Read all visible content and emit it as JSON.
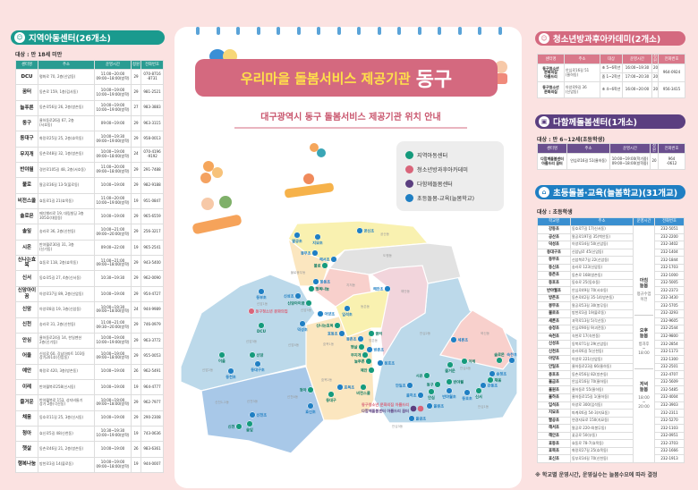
{
  "colors": {
    "teal": "#1a9a8e",
    "pink": "#d4697f",
    "purple": "#5b3f80",
    "blue": "#1f7fc3",
    "bg": "#fbe2e1"
  },
  "left": {
    "title": "지역아동센터(26개소)",
    "icon": "child-care-icon",
    "target": "대상 : 만 18세 미만",
    "headers": [
      "센터명",
      "주소",
      "운영시간",
      "정원",
      "전화번호"
    ],
    "rows": [
      [
        "DCU",
        "평화로 70, 2층(신암동)",
        "11:00~20:00\n09:00~18:00(방학)",
        "29",
        "070-8716\n-8731"
      ],
      [
        "꿈터",
        "동촌로 159, 1층(검사동)",
        "10:00~19:00\n10:00~19:00(방학)",
        "29",
        "981-2521"
      ],
      [
        "늘푸른",
        "동촌로56길 26, 2층(방촌동)",
        "10:00~19:00\n10:00~19:00(방학)",
        "27",
        "983-3883"
      ],
      [
        "동구",
        "율하동로26길 67, 2층\n(서호동)",
        "09:00~19:00",
        "29",
        "963-3115"
      ],
      [
        "동대구",
        "화랑로25길 25, 2층(효목동)",
        "10:00~19:30\n09:00~19:00(방학)",
        "29",
        "958-0013"
      ],
      [
        "무지개",
        "동촌로48길 32, 1층(방촌동)",
        "10:00~19:00\n09:00~18:00(방학)",
        "24",
        "070-4196\n-9192"
      ],
      [
        "반야월",
        "경안로105길 48, 2층(서호동)",
        "11:00~20:00\n09:00~18:00(방학)",
        "29",
        "291-7488"
      ],
      [
        "불로",
        "팔공로36길 13-5(불로동)",
        "10:00~19:00",
        "29",
        "982-9188"
      ],
      [
        "비전스쿨",
        "효동로1길 21(효목동)",
        "11:00~20:00\n10:00~19:00(방학)",
        "19",
        "951-0847"
      ],
      [
        "솔로몬",
        "메디밸리로 19, 대림빌딩 3층\n305호(대림동)",
        "10:00~19:00",
        "29",
        "965-6559"
      ],
      [
        "솔잎",
        "송라로 36, 2층(신천동)",
        "10:00~21:00\n09:00~20:00(방학)",
        "29",
        "256-3217"
      ],
      [
        "시온",
        "반야월로30길 31, 3층\n(신기동)",
        "09:00~22:00",
        "19",
        "965-2541"
      ],
      [
        "신나는효목",
        "효동로 118, 2층(효목동)",
        "11:00~21:00\n09:00~18:00(방학)",
        "29",
        "943-5400"
      ],
      [
        "신서",
        "동호로5길 27, 4층(신서동)",
        "10:30~19:30",
        "29",
        "962-0090"
      ],
      [
        "신암아이꿈",
        "아양로37길 89, 2층(신암동)",
        "10:00~19:00",
        "29",
        "954-4727"
      ],
      [
        "신암",
        "아양로8길 19, 3층(신암동)",
        "10:00~19:30\n09:00~18:00(방학)",
        "24",
        "944-9989"
      ],
      [
        "신천",
        "송라로 31, 2층(신천동)",
        "11:00~21:00\n09:30~20:00(방학)",
        "29",
        "746-0979"
      ],
      [
        "안심",
        "율하동로24길 14, 한일맨션\n2층(신기동)",
        "10:00~19:00\n10:00~19:00(방학)",
        "29",
        "963-3772"
      ],
      [
        "어울",
        "신성로 60, 강남아파트 103동\n상가201호(신암동)",
        "10:00~19:00\n09:00~18:00(방학)",
        "29",
        "955-0053"
      ],
      [
        "예안",
        "화랑로 420, 3층(방촌동)",
        "10:00~19:00",
        "26",
        "962-5491"
      ],
      [
        "이레",
        "반야월북로258(신서동)",
        "10:00~19:00",
        "19",
        "964-4777"
      ],
      [
        "즐거운",
        "반야월북로 153, 성지비둘기\n상가 2층(각산동)",
        "10:00~19:00\n09:00~18:00(방학)",
        "29",
        "962-7977"
      ],
      [
        "채움",
        "동호로11길 25, 3층(신서동)",
        "10:00~19:00",
        "29",
        "290-2308"
      ],
      [
        "청아",
        "효신로5길 48(신천동)",
        "10:30~19:30\n10:00~19:00(방학)",
        "19",
        "743-0636"
      ],
      [
        "햇살",
        "동촌로46길 21, 2층(방촌동)",
        "10:00~19:00",
        "26",
        "983-6361"
      ],
      [
        "행복나눔",
        "방천로3길 14(불로동)",
        "10:00~19:00\n09:00~18:00(방학)",
        "19",
        "944-0007"
      ]
    ]
  },
  "youth": {
    "title": "청소년방과후아카데미(2개소)",
    "icon": "youth-academy-icon",
    "headers": [
      "센터명",
      "주소",
      "대상",
      "운영시간",
      "정원",
      "전화번호"
    ],
    "rows": [
      {
        "name": "동구청소년\n문화의집\n아름드리",
        "addr": "안심로16길 51\n(율하동)",
        "sub": [
          [
            "초 5~6학년",
            "16:00~19:30",
            "20"
          ],
          [
            "중 1~2학년",
            "17:00~20:30",
            "20"
          ]
        ],
        "phone": "964-0924"
      },
      {
        "name": "동구청소년\n문화의집",
        "addr": "아양로9길 36\n(신암동)",
        "sub": [
          [
            "초 4~6학년",
            "16:00~20:00",
            "20"
          ]
        ],
        "phone": "956-3415"
      }
    ]
  },
  "daham": {
    "title": "다함께돌봄센터(1개소)",
    "icon": "community-care-icon",
    "target": "대상 : 만 6~12세(초등학생)",
    "headers": [
      "센터명",
      "주소",
      "운영시간",
      "정원",
      "전화번호"
    ],
    "row": [
      "다함께돌봄센터\n아름드리 꿈터",
      "안심로16길 51(율하동)",
      "10:00~19:00(학기중)\n09:00~18:00(방학중)",
      "20",
      "964\n-0612"
    ]
  },
  "school": {
    "title": "초등돌봄·교육(늘봄학교)(31개교)",
    "icon": "school-icon",
    "target": "대상 : 초등학생",
    "headers": [
      "학교명",
      "주소",
      "운영시간",
      "전화번호"
    ],
    "hours": [
      {
        "label": "아침\n늘봄",
        "time": "정규수업\n이전"
      },
      {
        "label": "오후\n늘봄",
        "time": "방과후\n~\n18:00"
      },
      {
        "label": "저녁\n늘봄",
        "time": "18:00\n~\n20:00"
      }
    ],
    "rows": [
      [
        "강동초",
        "동호로7길 17(신서동)",
        "232-5051"
      ],
      [
        "공산초",
        "팔공로197길 35(백안동)",
        "232-2200"
      ],
      [
        "덕성초",
        "아양로34길 50(신암동)",
        "232-3402"
      ],
      [
        "동대구초",
        "신암남로 45(신암동)",
        "232-1404"
      ],
      [
        "동부초",
        "신암북로7길 22(신암동)",
        "232-1844"
      ],
      [
        "동신초",
        "송라로 123(신암동)",
        "232-1703"
      ],
      [
        "동촌초",
        "동촌로 168(방촌동)",
        "232-1000"
      ],
      [
        "동호초",
        "동호로 25(동호동)",
        "232-5005"
      ],
      [
        "반야월초",
        "안심로49길 70(서호동)",
        "232-2373"
      ],
      [
        "방촌초",
        "동촌로42길 35-14(방촌동)",
        "232-3430"
      ],
      [
        "봉무초",
        "팔공로53길 30(봉무동)",
        "232-5705"
      ],
      [
        "불로초",
        "방천로3길 19(불로동)",
        "232-3293"
      ],
      [
        "새론초",
        "과학로13길 5(각산동)",
        "232-9605"
      ],
      [
        "송정초",
        "안심로90길 9(괴전동)",
        "232-2544"
      ],
      [
        "숙천초",
        "숙천로 17(숙천동)",
        "232-9800"
      ],
      [
        "신성초",
        "동북로71길 29(신암동)",
        "232-2854"
      ],
      [
        "신천초",
        "송라로6길 5(신천동)",
        "232-1173"
      ],
      [
        "아양초",
        "아양로 221(신암동)",
        "232-1300"
      ],
      [
        "안일초",
        "율하동로23길 66(율하동)",
        "232-2501"
      ],
      [
        "용호초",
        "동촌로56길 82(방촌동)",
        "232-4707"
      ],
      [
        "율금초",
        "안심로16길 70(율하동)",
        "232-5609"
      ],
      [
        "율원초",
        "율하동로 55(율하동)",
        "232-5485"
      ],
      [
        "율하초",
        "율하동로15길 1(율하동)",
        "232-4004"
      ],
      [
        "입석초",
        "아양로 300(입석동)",
        "232-3903"
      ],
      [
        "지묘초",
        "파계로6길 54-3(지묘동)",
        "232-2311"
      ],
      [
        "팔공초",
        "연경지묘로 150(지묘동)",
        "232-5270"
      ],
      [
        "해서초",
        "팔공로 220-4(봉무동)",
        "232-1103"
      ],
      [
        "해안초",
        "꽃공로 50(부동)",
        "232-0951"
      ],
      [
        "효동초",
        "효동로 78-7(효목동)",
        "232-3703"
      ],
      [
        "효목초",
        "화랑로27길 25(효목동)",
        "232-1666"
      ],
      [
        "효신초",
        "동부로34길 70(신천동)",
        "232-1913"
      ]
    ],
    "note": "※ 학교별 운영시간, 운영실수는 늘봄수요에 따라 결정"
  },
  "center": {
    "title_main": "우리마을 돌봄서비스 제공기관",
    "title_district": "동구",
    "subtitle": "대구광역시 동구 돌봄서비스 제공기관 위치 안내",
    "legend": [
      {
        "label": "지역아동센터",
        "color": "#159a7c",
        "icon": "child-care-icon"
      },
      {
        "label": "청소년방과후아카데미",
        "color": "#d9657a",
        "icon": "youth-academy-icon"
      },
      {
        "label": "다함께돌봄센터",
        "color": "#5b3f80",
        "icon": "community-care-icon"
      },
      {
        "label": "초등돌봄-교육(늘봄학교)",
        "color": "#1f7fc3",
        "icon": "school-icon"
      }
    ]
  },
  "map": {
    "dongs": [
      "공산동",
      "도평동",
      "불로봉무동",
      "지저동",
      "해안동",
      "동촌동",
      "신암1동",
      "신암5동",
      "신암3동",
      "신암4동",
      "신암2동",
      "효목1동",
      "방촌동",
      "안심2동",
      "혁신동",
      "안심4동",
      "효목2동",
      "신천4동",
      "신천3동",
      "신천1.2동",
      "안심3동",
      "안심1동"
    ],
    "schools": [
      "공신초",
      "팔공초",
      "지묘초",
      "봉무초",
      "해서초",
      "봉동초",
      "동부초",
      "신성초",
      "아양초",
      "입석초",
      "해안초",
      "덕성초",
      "효동초",
      "동촌초",
      "방촌초",
      "용호초",
      "동대구초",
      "동천초",
      "효목초",
      "효신초",
      "신천초",
      "세흔초",
      "숙천초",
      "송정초",
      "강동초",
      "동호초",
      "안일초",
      "율하초",
      "율원초",
      "율금초",
      "반야월초"
    ],
    "centers": [
      "불로",
      "행복나눔",
      "신암아이꿈",
      "DCU",
      "신나는효목",
      "꿈터",
      "햇살",
      "무지개",
      "늘푸른",
      "예안",
      "신암",
      "어울",
      "청아",
      "비전스쿨",
      "동대구",
      "신천",
      "솔잎",
      "시온",
      "동구",
      "반야월",
      "안심",
      "즐거운",
      "이레",
      "솔로몬",
      "채움",
      "신서"
    ],
    "youth": [
      "동구청소년 문화의집",
      "동구청소년 문화의집 아름드리"
    ],
    "daham": [
      "다함께돌봄센터 아름드리 꿈터"
    ]
  }
}
